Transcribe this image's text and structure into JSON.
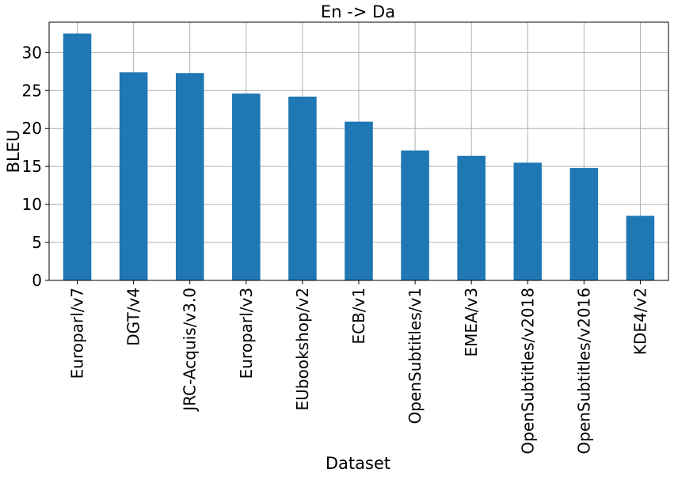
{
  "chart_data": {
    "type": "bar",
    "title": "En -> Da",
    "xlabel": "Dataset",
    "ylabel": "BLEU",
    "categories": [
      "Europarl/v7",
      "DGT/v4",
      "JRC-Acquis/v3.0",
      "Europarl/v3",
      "EUbookshop/v2",
      "ECB/v1",
      "OpenSubtitles/v1",
      "EMEA/v3",
      "OpenSubtitles/v2018",
      "OpenSubtitles/v2016",
      "KDE4/v2"
    ],
    "values": [
      32.5,
      27.4,
      27.3,
      24.6,
      24.2,
      20.9,
      17.1,
      16.4,
      15.5,
      14.8,
      8.5
    ],
    "ylim": [
      0,
      34
    ],
    "yticks": [
      "0",
      "5",
      "10",
      "15",
      "20",
      "25",
      "30"
    ],
    "grid": true,
    "legend": "none",
    "bar_color": "#1f77b4",
    "grid_color": "#b0b0b0"
  }
}
